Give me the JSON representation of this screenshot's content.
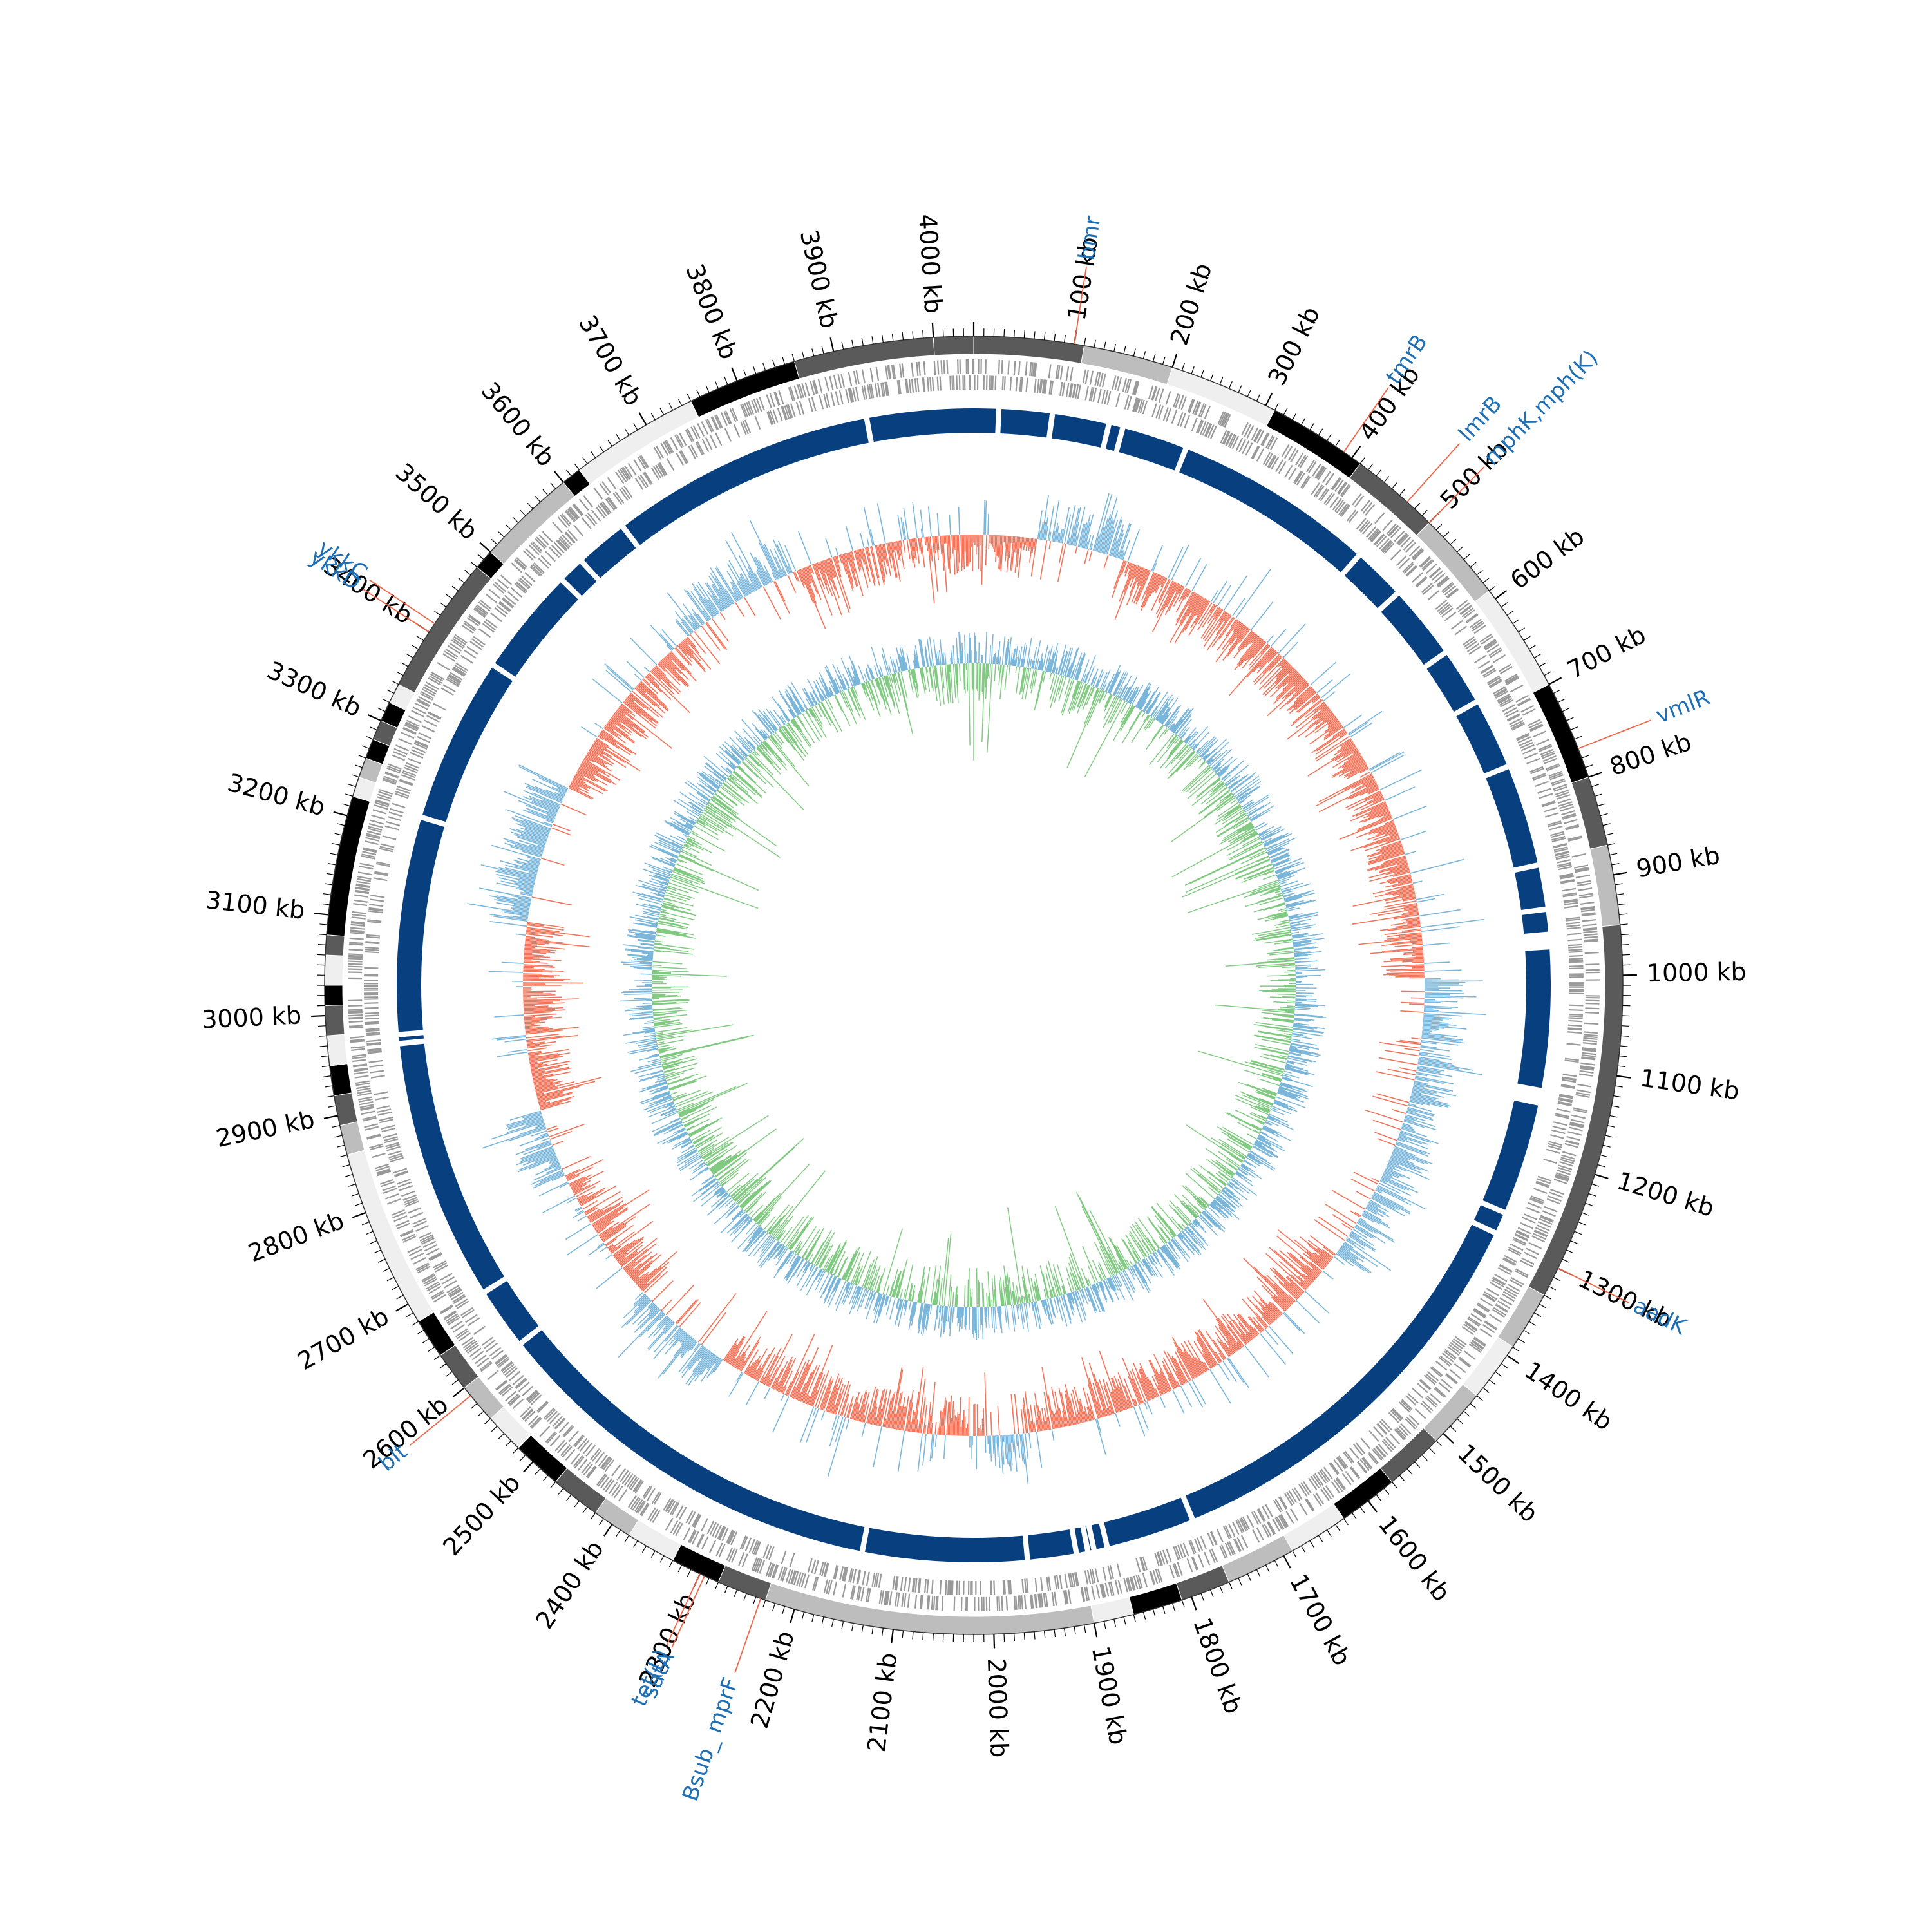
{
  "genome": {
    "size_kb": 4040,
    "tick_step_kb": 100,
    "tick_unit": "kb",
    "minor_tick_step_kb": 10
  },
  "tick_labels": [
    "100 kb",
    "200 kb",
    "300 kb",
    "400 kb",
    "500 kb",
    "600 kb",
    "700 kb",
    "800 kb",
    "900 kb",
    "1000 kb",
    "1100 kb",
    "1200 kb",
    "1300 kb",
    "1400 kb",
    "1500 kb",
    "1600 kb",
    "1700 kb",
    "1800 kb",
    "1900 kb",
    "2000 kb",
    "2100 kb",
    "2200 kb",
    "2300 kb",
    "2400 kb",
    "2500 kb",
    "2600 kb",
    "2700 kb",
    "2800 kb",
    "2900 kb",
    "3000 kb",
    "3100 kb",
    "3200 kb",
    "3300 kb",
    "3400 kb",
    "3500 kb",
    "3600 kb",
    "3700 kb",
    "3800 kb",
    "3900 kb",
    "4000 kb"
  ],
  "gene_labels": [
    {
      "name": "bmr",
      "kb": 100
    },
    {
      "name": "tmrB",
      "kb": 390
    },
    {
      "name": "lmrB",
      "kb": 470
    },
    {
      "name": "mphK,mph(K)",
      "kb": 500
    },
    {
      "name": "vmlR",
      "kb": 770
    },
    {
      "name": "aadK",
      "kb": 1300
    },
    {
      "name": "Bsub_ mprF",
      "kb": 2235
    },
    {
      "name": "satA",
      "kb": 2295
    },
    {
      "name": "tet(L)",
      "kb": 2300
    },
    {
      "name": "blt",
      "kb": 2590
    },
    {
      "name": "ykkD",
      "kb": 3400
    },
    {
      "name": "ykkC",
      "kb": 3410
    }
  ],
  "contigs": [
    {
      "start": 0,
      "end": 110,
      "shade": "dark"
    },
    {
      "start": 110,
      "end": 200,
      "shade": "light"
    },
    {
      "start": 200,
      "end": 310,
      "shade": "pale"
    },
    {
      "start": 310,
      "end": 410,
      "shade": "black"
    },
    {
      "start": 410,
      "end": 500,
      "shade": "dark"
    },
    {
      "start": 500,
      "end": 590,
      "shade": "light"
    },
    {
      "start": 590,
      "end": 700,
      "shade": "pale"
    },
    {
      "start": 700,
      "end": 800,
      "shade": "black"
    },
    {
      "start": 800,
      "end": 870,
      "shade": "dark"
    },
    {
      "start": 870,
      "end": 950,
      "shade": "light"
    },
    {
      "start": 950,
      "end": 1330,
      "shade": "dark"
    },
    {
      "start": 1330,
      "end": 1390,
      "shade": "light"
    },
    {
      "start": 1390,
      "end": 1450,
      "shade": "pale"
    },
    {
      "start": 1450,
      "end": 1510,
      "shade": "light"
    },
    {
      "start": 1510,
      "end": 1570,
      "shade": "dark"
    },
    {
      "start": 1570,
      "end": 1630,
      "shade": "black"
    },
    {
      "start": 1630,
      "end": 1690,
      "shade": "pale"
    },
    {
      "start": 1690,
      "end": 1760,
      "shade": "light"
    },
    {
      "start": 1760,
      "end": 1810,
      "shade": "dark"
    },
    {
      "start": 1810,
      "end": 1860,
      "shade": "black"
    },
    {
      "start": 1860,
      "end": 1900,
      "shade": "pale"
    },
    {
      "start": 1900,
      "end": 2230,
      "shade": "light"
    },
    {
      "start": 2230,
      "end": 2280,
      "shade": "dark"
    },
    {
      "start": 2280,
      "end": 2330,
      "shade": "black"
    },
    {
      "start": 2330,
      "end": 2380,
      "shade": "pale"
    },
    {
      "start": 2380,
      "end": 2420,
      "shade": "light"
    },
    {
      "start": 2420,
      "end": 2470,
      "shade": "dark"
    },
    {
      "start": 2470,
      "end": 2520,
      "shade": "black"
    },
    {
      "start": 2520,
      "end": 2560,
      "shade": "pale"
    },
    {
      "start": 2560,
      "end": 2600,
      "shade": "light"
    },
    {
      "start": 2600,
      "end": 2640,
      "shade": "dark"
    },
    {
      "start": 2640,
      "end": 2680,
      "shade": "black"
    },
    {
      "start": 2680,
      "end": 2860,
      "shade": "pale"
    },
    {
      "start": 2860,
      "end": 2890,
      "shade": "light"
    },
    {
      "start": 2890,
      "end": 2920,
      "shade": "dark"
    },
    {
      "start": 2920,
      "end": 2950,
      "shade": "black"
    },
    {
      "start": 2950,
      "end": 2980,
      "shade": "pale"
    },
    {
      "start": 2980,
      "end": 3010,
      "shade": "dark"
    },
    {
      "start": 3010,
      "end": 3030,
      "shade": "black"
    },
    {
      "start": 3030,
      "end": 3060,
      "shade": "pale"
    },
    {
      "start": 3060,
      "end": 3080,
      "shade": "dark"
    },
    {
      "start": 3080,
      "end": 3220,
      "shade": "black"
    },
    {
      "start": 3220,
      "end": 3240,
      "shade": "pale"
    },
    {
      "start": 3240,
      "end": 3260,
      "shade": "light"
    },
    {
      "start": 3260,
      "end": 3280,
      "shade": "black"
    },
    {
      "start": 3280,
      "end": 3300,
      "shade": "dark"
    },
    {
      "start": 3300,
      "end": 3320,
      "shade": "black"
    },
    {
      "start": 3320,
      "end": 3340,
      "shade": "pale"
    },
    {
      "start": 3340,
      "end": 3480,
      "shade": "dark"
    },
    {
      "start": 3480,
      "end": 3500,
      "shade": "black"
    },
    {
      "start": 3500,
      "end": 3600,
      "shade": "light"
    },
    {
      "start": 3600,
      "end": 3620,
      "shade": "black"
    },
    {
      "start": 3620,
      "end": 3750,
      "shade": "pale"
    },
    {
      "start": 3750,
      "end": 3860,
      "shade": "black"
    },
    {
      "start": 3860,
      "end": 4000,
      "shade": "dark"
    },
    {
      "start": 4000,
      "end": 4040,
      "shade": "dark"
    }
  ],
  "alignment_gaps_kb": [
    28,
    88,
    152,
    168,
    242,
    470,
    530,
    615,
    680,
    760,
    875,
    925,
    960,
    1135,
    1270,
    1295,
    1770,
    1870,
    1885,
    1892,
    1905,
    1960,
    2145,
    2600,
    2670,
    2965,
    2975,
    3220,
    3408,
    3530,
    3560,
    3620,
    3920
  ],
  "colors": {
    "contig_black": "#000000",
    "contig_dark": "#5a5a5a",
    "contig_light": "#bdbdbd",
    "contig_pale": "#efefef",
    "gene_track": "#999999",
    "alignment": "#08407f",
    "gc_skew_positive": "#9ecae1",
    "gc_skew_positive_line": "#6baed6",
    "gc_skew_negative": "#fc9272",
    "gc_skew_negative_line": "#ef6548",
    "gc_content_outer": "#6baed6",
    "gc_content_inner": "#74c476",
    "label_text": "#1f6fb5",
    "label_line": "#ef6548"
  }
}
